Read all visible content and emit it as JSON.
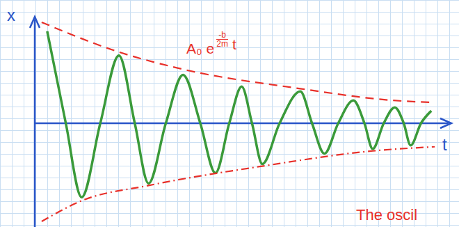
{
  "chart_data": {
    "type": "line",
    "x_label": "t",
    "y_label": "x",
    "xlim": [
      0,
      12
    ],
    "ylim": [
      -1.5,
      1.5
    ],
    "tick_labels": false,
    "envelope_label": {
      "base": "A₀ e",
      "exponent_numerator": "-b",
      "exponent_denominator": "2m",
      "suffix": "t"
    },
    "annotations": [
      "The oscil"
    ],
    "series": [
      {
        "color": "#3a9a3a",
        "line_style": "solid",
        "x": [
          0.36,
          0.9,
          1.36,
          1.9,
          2.44,
          2.9,
          3.3,
          3.8,
          4.3,
          4.8,
          5.24,
          5.64,
          6.0,
          6.3,
          6.6,
          7.1,
          7.7,
          8.04,
          8.4,
          8.8,
          9.24,
          9.56,
          9.8,
          10.12,
          10.44,
          10.7,
          10.9,
          11.2,
          11.5
        ],
        "values": [
          1.33,
          0,
          -1.07,
          0,
          0.98,
          0,
          -0.87,
          0,
          0.7,
          0,
          -0.72,
          0,
          0.53,
          0,
          -0.59,
          0,
          0.46,
          0,
          -0.44,
          0,
          0.33,
          0,
          -0.37,
          0,
          0.23,
          0,
          -0.32,
          0,
          0.18
        ]
      },
      {
        "color": "#e8302a",
        "line_style": "dashed",
        "x": [
          0.2,
          2.44,
          4.3,
          7.7,
          10.4,
          11.6
        ],
        "values": [
          1.46,
          1.03,
          0.78,
          0.5,
          0.33,
          0.3
        ]
      },
      {
        "color": "#e8302a",
        "line_style": "dashdot",
        "x": [
          0.2,
          1.36,
          3.3,
          6.6,
          9.8,
          11.6
        ],
        "values": [
          -1.42,
          -1.12,
          -0.9,
          -0.62,
          -0.4,
          -0.34
        ]
      }
    ]
  }
}
